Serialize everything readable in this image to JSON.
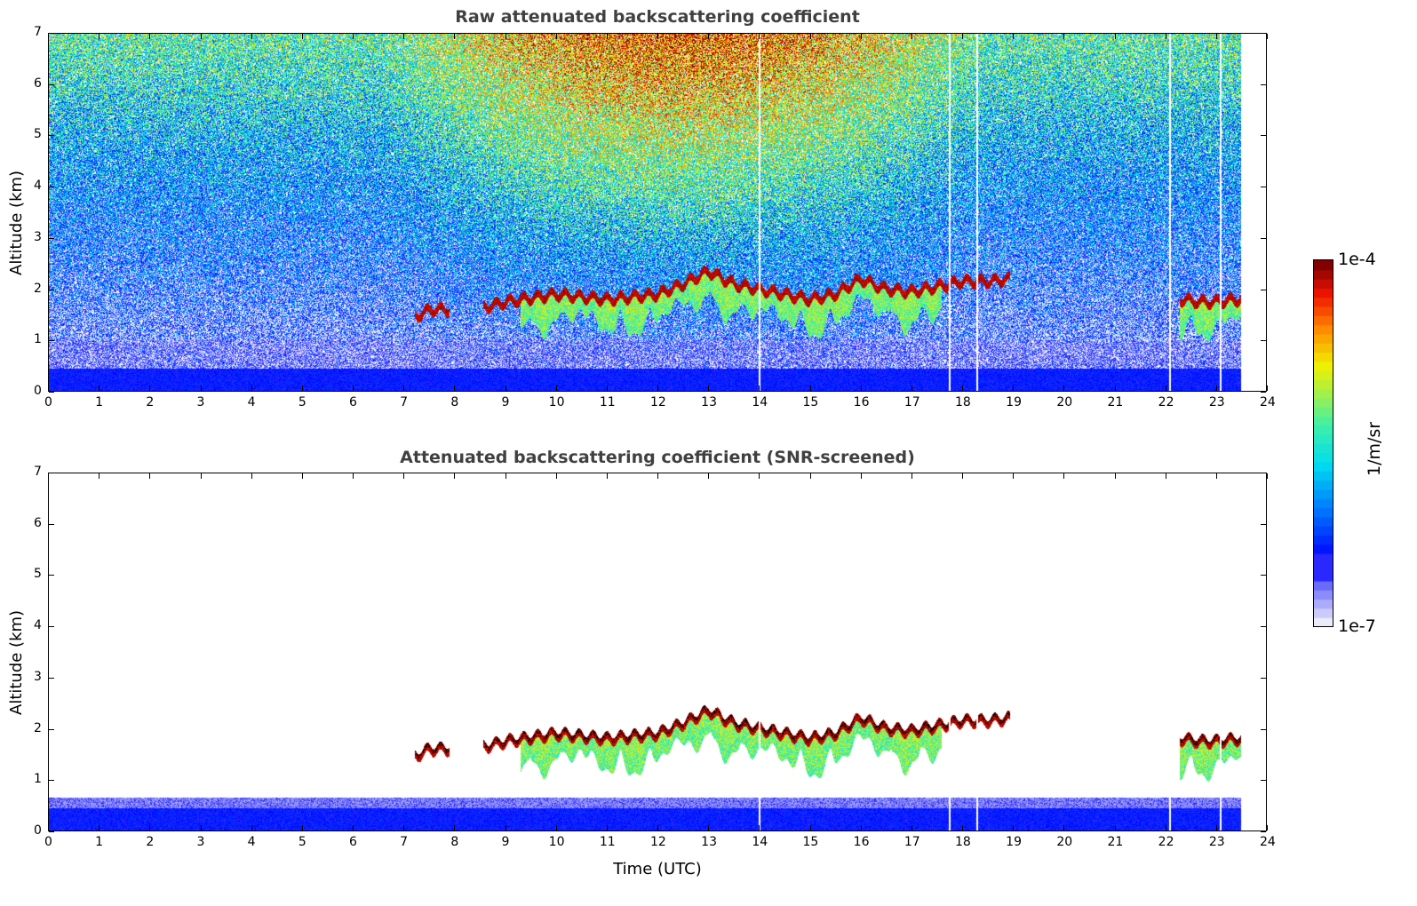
{
  "chart_data": [
    {
      "type": "heatmap",
      "title": "Raw attenuated backscattering coefficient",
      "xlabel": "",
      "ylabel": "Altitude (km)",
      "xlim": [
        0,
        24
      ],
      "ylim": [
        0,
        7
      ],
      "xticks": [
        0,
        1,
        2,
        3,
        4,
        5,
        6,
        7,
        8,
        9,
        10,
        11,
        12,
        13,
        14,
        15,
        16,
        17,
        18,
        19,
        20,
        21,
        22,
        23,
        24
      ],
      "yticks": [
        0,
        1,
        2,
        3,
        4,
        5,
        6,
        7
      ],
      "data_end_hour": 23.5,
      "cloud_base_km": {
        "time_utc": [
          7.2,
          7.5,
          7.8,
          8.6,
          9,
          10,
          10.5,
          11,
          11.5,
          12,
          12.5,
          13,
          13.5,
          14,
          14.5,
          15,
          15.5,
          16,
          16.5,
          17,
          17.5,
          18,
          18.5,
          18.9,
          22.3,
          22.7,
          23,
          23.5
        ],
        "altitude": [
          1.45,
          1.6,
          1.6,
          1.65,
          1.75,
          1.9,
          1.85,
          1.8,
          1.85,
          1.9,
          2.1,
          2.35,
          2.1,
          2.0,
          1.9,
          1.8,
          1.9,
          2.2,
          2.0,
          1.95,
          2.05,
          2.15,
          2.15,
          2.2,
          1.8,
          1.75,
          1.75,
          1.8
        ]
      }
    },
    {
      "type": "heatmap",
      "title": "Attenuated backscattering coefficient (SNR-screened)",
      "xlabel": "Time (UTC)",
      "ylabel": "Altitude (km)",
      "xlim": [
        0,
        24
      ],
      "ylim": [
        0,
        7
      ],
      "xticks": [
        0,
        1,
        2,
        3,
        4,
        5,
        6,
        7,
        8,
        9,
        10,
        11,
        12,
        13,
        14,
        15,
        16,
        17,
        18,
        19,
        20,
        21,
        22,
        23,
        24
      ],
      "yticks": [
        0,
        1,
        2,
        3,
        4,
        5,
        6,
        7
      ]
    }
  ],
  "colorbar": {
    "label": "1/m/sr",
    "min_label": "1e-7",
    "max_label": "1e-4",
    "scale": "log",
    "colormap": "jet"
  }
}
